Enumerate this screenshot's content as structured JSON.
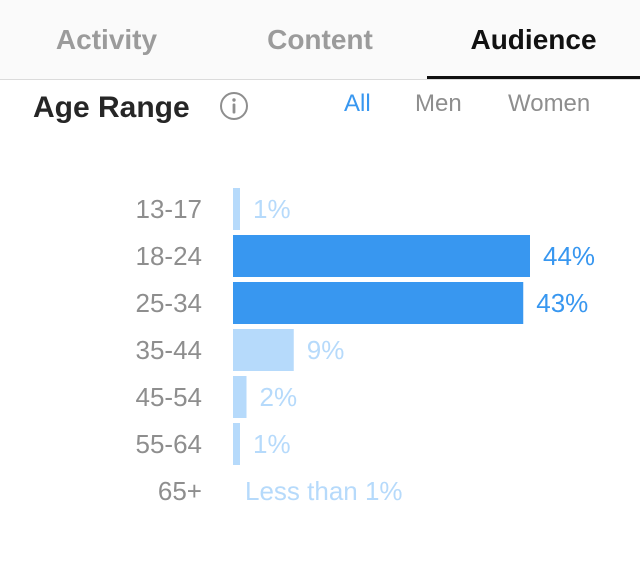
{
  "tabs": [
    {
      "label": "Activity",
      "active": false
    },
    {
      "label": "Content",
      "active": false
    },
    {
      "label": "Audience",
      "active": true
    }
  ],
  "section": {
    "title": "Age Range",
    "info_icon": "info-circle-icon"
  },
  "filters": [
    {
      "label": "All",
      "active": true
    },
    {
      "label": "Men",
      "active": false
    },
    {
      "label": "Women",
      "active": false
    }
  ],
  "colors": {
    "accent": "#3897f0",
    "bar_light": "#b6dafb",
    "label_light": "#b6dafb",
    "category_text": "#8e8e8e"
  },
  "chart_data": {
    "type": "bar",
    "orientation": "horizontal",
    "categories": [
      "13-17",
      "18-24",
      "25-34",
      "35-44",
      "45-54",
      "55-64",
      "65+"
    ],
    "values": [
      1,
      44,
      43,
      9,
      2,
      1,
      0.5
    ],
    "value_labels": [
      "1%",
      "44%",
      "43%",
      "9%",
      "2%",
      "1%",
      "Less than 1%"
    ],
    "highlighted": [
      false,
      true,
      true,
      false,
      false,
      false,
      false
    ],
    "show_bar": [
      true,
      true,
      true,
      true,
      true,
      true,
      false
    ],
    "xlim": [
      0,
      44
    ],
    "grid": false
  }
}
